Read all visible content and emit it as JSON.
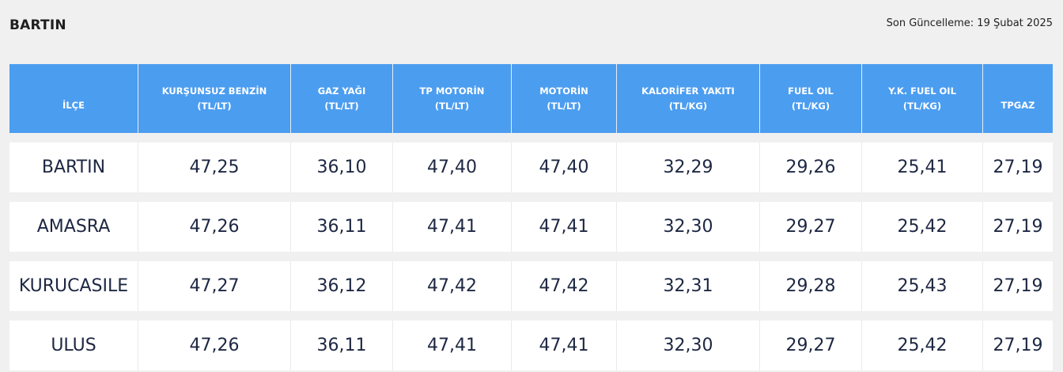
{
  "header": {
    "city": "BARTIN",
    "last_updated": "Son Güncelleme: 19 Şubat 2025"
  },
  "table": {
    "columns": [
      {
        "label": "İLÇE",
        "unit": ""
      },
      {
        "label": "KURŞUNSUZ BENZİN",
        "unit": "(TL/LT)"
      },
      {
        "label": "GAZ YAĞI",
        "unit": "(TL/LT)"
      },
      {
        "label": "TP MOTORİN",
        "unit": "(TL/LT)"
      },
      {
        "label": "MOTORİN",
        "unit": "(TL/LT)"
      },
      {
        "label": "KALORİFER YAKITI",
        "unit": "(TL/KG)"
      },
      {
        "label": "FUEL OIL",
        "unit": "(TL/KG)"
      },
      {
        "label": "Y.K. FUEL OIL",
        "unit": "(TL/KG)"
      },
      {
        "label": "TPGAZ",
        "unit": ""
      }
    ],
    "rows": [
      [
        "BARTIN",
        "47,25",
        "36,10",
        "47,40",
        "47,40",
        "32,29",
        "29,26",
        "25,41",
        "27,19"
      ],
      [
        "AMASRA",
        "47,26",
        "36,11",
        "47,41",
        "47,41",
        "32,30",
        "29,27",
        "25,42",
        "27,19"
      ],
      [
        "KURUCASILE",
        "47,27",
        "36,12",
        "47,42",
        "47,42",
        "32,31",
        "29,28",
        "25,43",
        "27,19"
      ],
      [
        "ULUS",
        "47,26",
        "36,11",
        "47,41",
        "47,41",
        "32,30",
        "29,27",
        "25,42",
        "27,19"
      ]
    ]
  },
  "colors": {
    "header_bg": "#4b9df0",
    "page_bg": "#f0f0f0",
    "cell_text": "#1d2742"
  }
}
